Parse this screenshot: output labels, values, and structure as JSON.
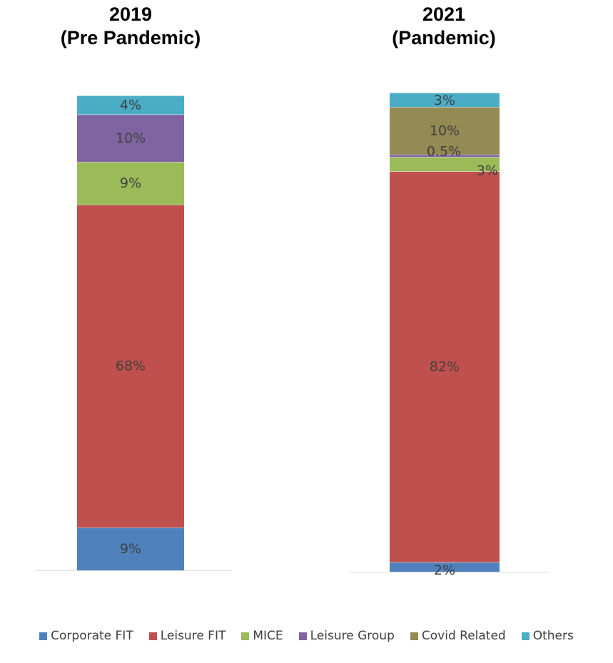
{
  "chart_data": [
    {
      "type": "bar",
      "stacked": true,
      "title": [
        "2019",
        "(Pre Pandemic)"
      ],
      "categories": [
        "2019"
      ],
      "series": [
        {
          "name": "Corporate FIT",
          "values": [
            9
          ],
          "label": "9%"
        },
        {
          "name": "Leisure FIT",
          "values": [
            68
          ],
          "label": "68%"
        },
        {
          "name": "MICE",
          "values": [
            9
          ],
          "label": "9%"
        },
        {
          "name": "Leisure Group",
          "values": [
            10
          ],
          "label": "10%"
        },
        {
          "name": "Covid Related",
          "values": [
            0
          ],
          "label": ""
        },
        {
          "name": "Others",
          "values": [
            4
          ],
          "label": "4%"
        }
      ],
      "ylim": [
        0,
        100
      ],
      "grid": false,
      "legend": "bottom"
    },
    {
      "type": "bar",
      "stacked": true,
      "title": [
        "2021",
        "(Pandemic)"
      ],
      "categories": [
        "2021"
      ],
      "series": [
        {
          "name": "Corporate FIT",
          "values": [
            2
          ],
          "label": "2%"
        },
        {
          "name": "Leisure FIT",
          "values": [
            82
          ],
          "label": "82%"
        },
        {
          "name": "MICE",
          "values": [
            3
          ],
          "label": "3%"
        },
        {
          "name": "Leisure Group",
          "values": [
            0.5
          ],
          "label": "0.5%"
        },
        {
          "name": "Covid Related",
          "values": [
            10
          ],
          "label": "10%"
        },
        {
          "name": "Others",
          "values": [
            3
          ],
          "label": "3%"
        }
      ],
      "ylim": [
        0,
        100
      ],
      "grid": false,
      "legend": "bottom"
    }
  ],
  "legend": [
    {
      "name": "Corporate FIT",
      "color": "#4F81BD"
    },
    {
      "name": "Leisure FIT",
      "color": "#C0504D"
    },
    {
      "name": "MICE",
      "color": "#9BBB59"
    },
    {
      "name": "Leisure Group",
      "color": "#8064A2"
    },
    {
      "name": "Covid Related",
      "color": "#948A54"
    },
    {
      "name": "Others",
      "color": "#4BACC6"
    }
  ]
}
